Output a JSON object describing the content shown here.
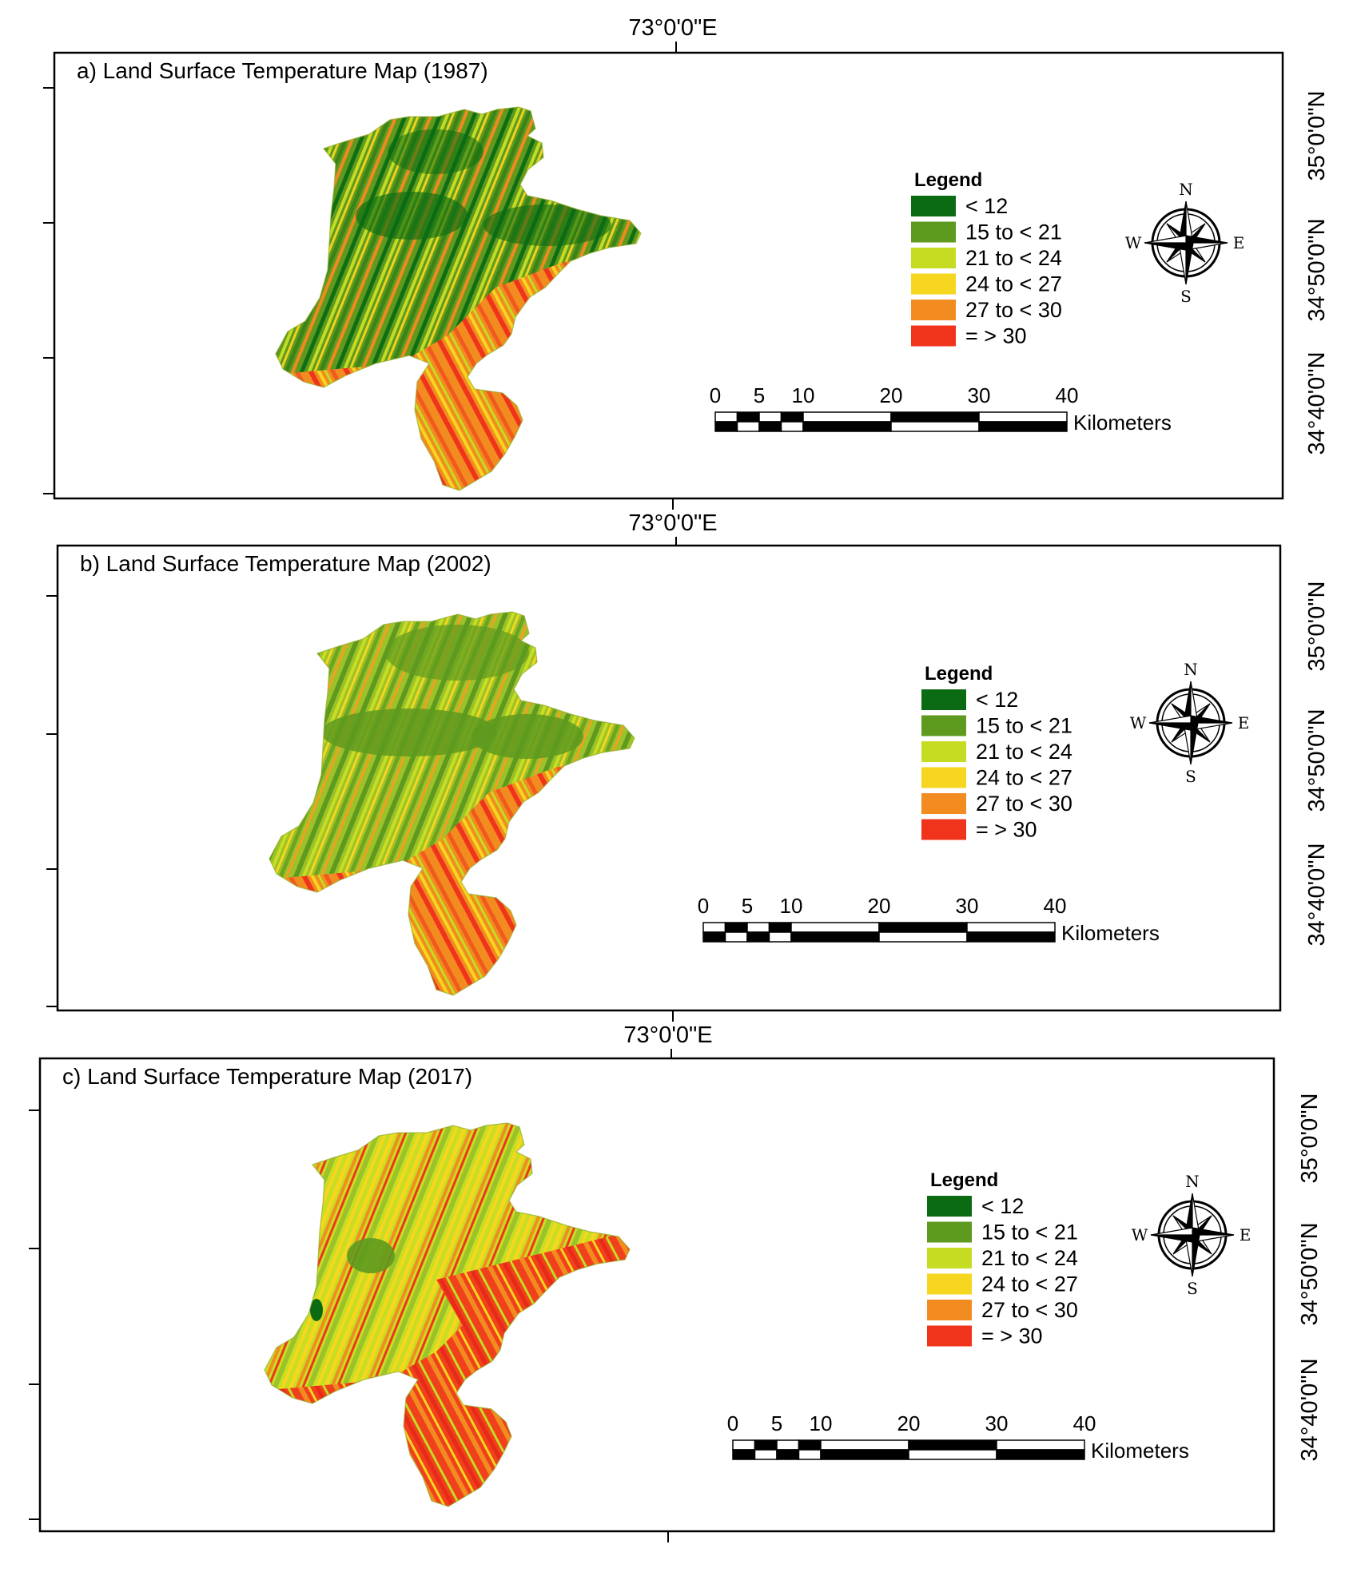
{
  "panels": [
    {
      "title": "a) Land Surface Temperature Map (1987)",
      "year": "1987",
      "theme": "cool",
      "top_longitude": "73°0'0\"E",
      "lat_labels": [
        "35°0'0\"N",
        "34°50'0\"N",
        "34°40'0\"N"
      ]
    },
    {
      "title": "b) Land Surface Temperature Map (2002)",
      "year": "2002",
      "theme": "mild",
      "top_longitude": "73°0'0\"E",
      "lat_labels": [
        "35°0'0\"N",
        "34°50'0\"N",
        "34°40'0\"N"
      ]
    },
    {
      "title": "c) Land Surface Temperature Map (2017)",
      "year": "2017",
      "theme": "hot",
      "top_longitude": "73°0'0\"E",
      "lat_labels": [
        "35°0'0\"N",
        "34°50'0\"N",
        "34°40'0\"N"
      ]
    }
  ],
  "legend": {
    "title": "Legend",
    "items": [
      {
        "label": "< 12",
        "color": "#0b6b12"
      },
      {
        "label": "15 to < 21",
        "color": "#5e9a1e"
      },
      {
        "label": "21 to < 24",
        "color": "#c5dc22"
      },
      {
        "label": "24 to < 27",
        "color": "#f6d61e"
      },
      {
        "label": "27 to < 30",
        "color": "#f28c20"
      },
      {
        "label": "= > 30",
        "color": "#f0341c"
      }
    ]
  },
  "scale_bar": {
    "ticks": [
      "0",
      "5",
      "10",
      "20",
      "30",
      "40"
    ],
    "unit": "Kilometers"
  },
  "compass": {
    "n": "N",
    "s": "S",
    "e": "E",
    "w": "W"
  }
}
